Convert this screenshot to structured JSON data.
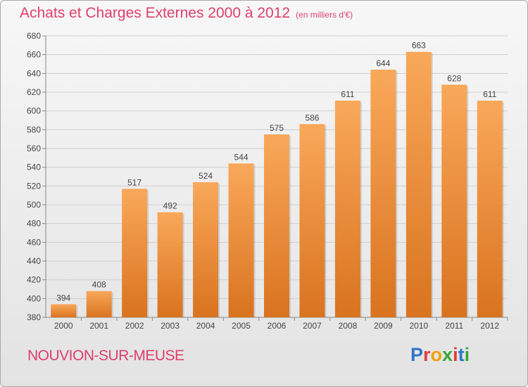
{
  "header": {
    "title": "Achats et Charges Externes 2000 à 2012",
    "subtitle": "(en milliers d'€)"
  },
  "footer": {
    "city": "NOUVION-SUR-MEUSE",
    "logo": "Proxiti"
  },
  "colors": {
    "title": "#de3f6b",
    "bar_top": "#f9a85a",
    "bar_bottom": "#d9731f"
  },
  "chart_data": {
    "type": "bar",
    "title": "Achats et Charges Externes 2000 à 2012",
    "subtitle": "(en milliers d'€)",
    "categories": [
      "2000",
      "2001",
      "2002",
      "2003",
      "2004",
      "2005",
      "2006",
      "2007",
      "2008",
      "2009",
      "2010",
      "2011",
      "2012"
    ],
    "values": [
      394,
      408,
      517,
      492,
      524,
      544,
      575,
      586,
      611,
      644,
      663,
      628,
      611
    ],
    "xlabel": "",
    "ylabel": "",
    "ylim": [
      380,
      680
    ],
    "yticks": [
      380,
      400,
      420,
      440,
      460,
      480,
      500,
      520,
      540,
      560,
      580,
      600,
      620,
      640,
      660,
      680
    ],
    "grid": true,
    "data_labels": true
  }
}
